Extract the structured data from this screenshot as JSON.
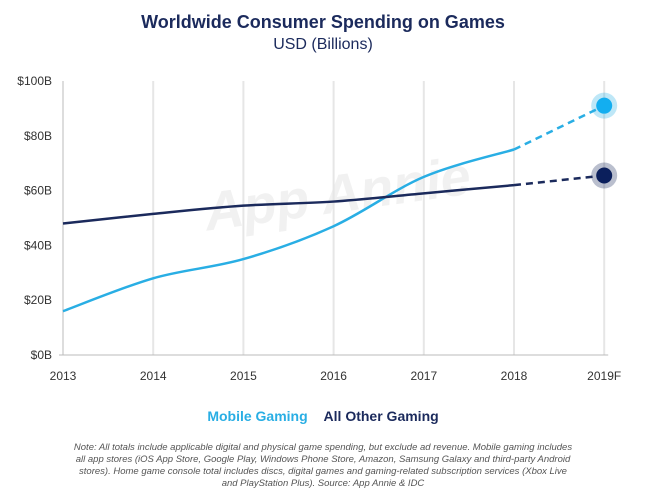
{
  "chart_data": {
    "type": "line",
    "title": "Worldwide Consumer Spending on Games",
    "subtitle": "USD (Billions)",
    "categories": [
      "2013",
      "2014",
      "2015",
      "2016",
      "2017",
      "2018",
      "2019F"
    ],
    "ylim": [
      0,
      100
    ],
    "yticks": [
      "$0B",
      "$20B",
      "$40B",
      "$60B",
      "$80B",
      "$100B"
    ],
    "grid": "vertical",
    "legend_position": "bottom",
    "watermark": "App Annie",
    "series": [
      {
        "name": "Mobile Gaming",
        "color": "#29aee4",
        "marker_color": "#13aef0",
        "values": [
          16,
          28,
          35,
          47,
          65,
          75,
          91
        ],
        "forecast_from": "2018"
      },
      {
        "name": "All Other Gaming",
        "color": "#1b2a5c",
        "marker_color": "#0b1f5c",
        "values": [
          48,
          51.5,
          54.5,
          56,
          59,
          62,
          65.5
        ],
        "forecast_from": "2018"
      }
    ]
  },
  "note": "Note: All totals include applicable digital and physical game spending, but exclude ad revenue. Mobile gaming includes all app stores (iOS App Store, Google Play, Windows Phone Store, Amazon, Samsung Galaxy and third-party Android stores). Home game console total includes discs, digital games and gaming-related subscription services (Xbox Live and PlayStation Plus). Source: App Annie & IDC"
}
